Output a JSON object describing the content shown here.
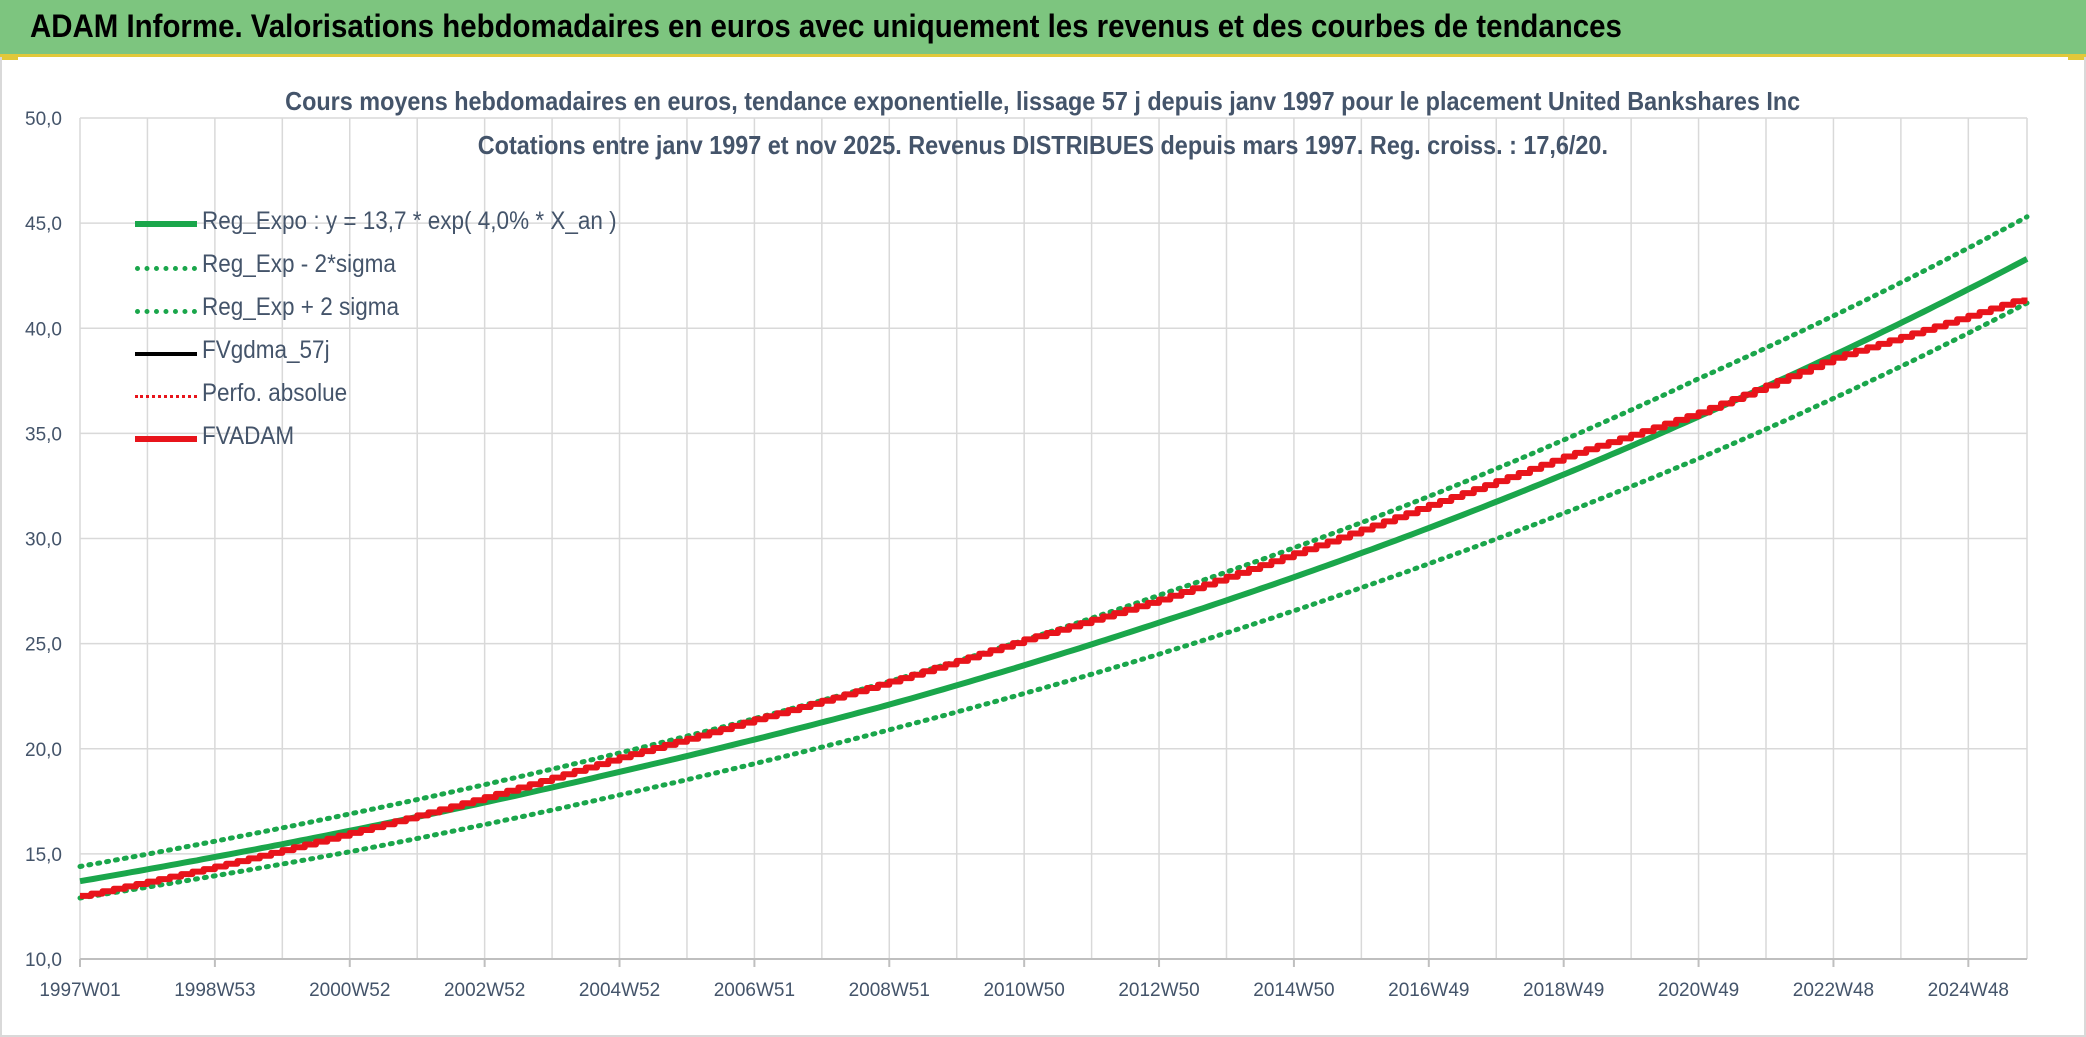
{
  "header": {
    "title": "ADAM Informe. Valorisations hebdomadaires en euros avec uniquement les revenus et des courbes de tendances"
  },
  "colors": {
    "banner": "#7dc57f",
    "accent_border": "#e2c83a",
    "reg_expo": "#1aa64b",
    "fvadam": "#e8141b",
    "fvgdma": "#000000",
    "perfo": "#e8141b",
    "text": "#44546a",
    "grid": "#d9d9d9"
  },
  "chart_data": {
    "type": "line",
    "title": "Cours moyens hebdomadaires en euros, tendance exponentielle, lissage 57 j depuis janv 1997 pour le placement United Bankshares Inc",
    "subtitle": "Cotations entre janv 1997 et nov 2025. Revenus DISTRIBUES depuis mars 1997. Reg. croiss. : 17,6/20.",
    "xlabel": "",
    "ylabel": "",
    "ylim": [
      10,
      50
    ],
    "yticks": [
      "10,0",
      "15,0",
      "20,0",
      "25,0",
      "30,0",
      "35,0",
      "40,0",
      "45,0",
      "50,0"
    ],
    "x_tick_labels": [
      "1997W01",
      "1998W53",
      "2000W52",
      "2002W52",
      "2004W52",
      "2006W51",
      "2008W51",
      "2010W50",
      "2012W50",
      "2014W50",
      "2016W49",
      "2018W49",
      "2020W49",
      "2022W48",
      "2024W48"
    ],
    "x_range_years": [
      1997.0,
      2025.87
    ],
    "grid": true,
    "legend_position": "top-left",
    "series": [
      {
        "name": "Reg_Expo : y = 13,7 * exp( 4,0% *  X_an )",
        "style": "solid-thick",
        "color": "#1aa64b",
        "x": [
          1997,
          2001,
          2005,
          2009,
          2013,
          2017,
          2021,
          2025.87
        ],
        "y": [
          13.7,
          16.1,
          18.9,
          22.1,
          26.0,
          30.5,
          35.8,
          43.3
        ]
      },
      {
        "name": "Reg_Exp - 2*sigma",
        "style": "dotted",
        "color": "#1aa64b",
        "x": [
          1997,
          2001,
          2005,
          2009,
          2013,
          2017,
          2021,
          2025.87
        ],
        "y": [
          12.9,
          15.1,
          17.8,
          20.9,
          24.5,
          28.8,
          33.8,
          41.2
        ]
      },
      {
        "name": "Reg_Exp + 2 sigma",
        "style": "dotted",
        "color": "#1aa64b",
        "x": [
          1997,
          2001,
          2005,
          2009,
          2013,
          2017,
          2021,
          2025.87
        ],
        "y": [
          14.4,
          16.9,
          19.8,
          23.2,
          27.3,
          32.0,
          37.6,
          45.3
        ]
      },
      {
        "name": "FVgdma_57j",
        "style": "solid",
        "color": "#000000",
        "x": [],
        "y": []
      },
      {
        "name": "Perfo. absolue",
        "style": "dotted",
        "color": "#e8141b",
        "x": [],
        "y": []
      },
      {
        "name": "FVADAM",
        "style": "steps-thick",
        "color": "#e8141b",
        "x": [
          1997,
          1999,
          2001,
          2003,
          2005,
          2007,
          2009,
          2011,
          2013,
          2015,
          2017,
          2019,
          2021,
          2023,
          2025.87
        ],
        "y": [
          13.0,
          14.4,
          16.0,
          17.7,
          19.6,
          21.4,
          23.2,
          25.2,
          27.1,
          29.3,
          31.6,
          33.9,
          36.0,
          38.6,
          41.5
        ]
      }
    ]
  }
}
